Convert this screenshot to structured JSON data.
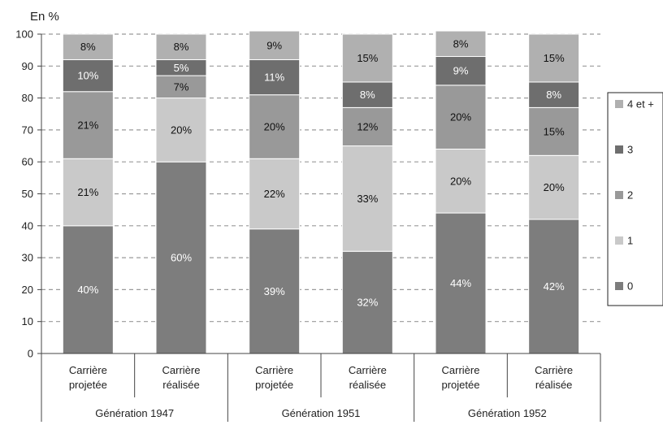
{
  "chart_data": {
    "type": "bar",
    "stacked": true,
    "y_unit_label": "En %",
    "ylim": [
      0,
      100
    ],
    "yticks": [
      0,
      10,
      20,
      30,
      40,
      50,
      60,
      70,
      80,
      90,
      100
    ],
    "grid": true,
    "legend_position": "right",
    "categories": [
      {
        "label": [
          "Carrière",
          "projetée"
        ],
        "group": "Génération 1947"
      },
      {
        "label": [
          "Carrière",
          "réalisée"
        ],
        "group": "Génération 1947"
      },
      {
        "label": [
          "Carrière",
          "projetée"
        ],
        "group": "Génération 1951"
      },
      {
        "label": [
          "Carrière",
          "réalisée"
        ],
        "group": "Génération 1951"
      },
      {
        "label": [
          "Carrière",
          "projetée"
        ],
        "group": "Génération 1952"
      },
      {
        "label": [
          "Carrière",
          "réalisée"
        ],
        "group": "Génération 1952"
      }
    ],
    "groups": [
      "Génération 1947",
      "Génération 1951",
      "Génération 1952"
    ],
    "series": [
      {
        "name": "0",
        "color": "#7d7d7d",
        "label_color": "#ffffff",
        "values": [
          40,
          60,
          39,
          32,
          44,
          42
        ],
        "labels": [
          "40%",
          "60%",
          "39%",
          "32%",
          "44%",
          "42%"
        ]
      },
      {
        "name": "1",
        "color": "#c9c9c9",
        "label_color": "#111111",
        "values": [
          21,
          20,
          22,
          33,
          20,
          20
        ],
        "labels": [
          "21%",
          "20%",
          "22%",
          "33%",
          "20%",
          "20%"
        ]
      },
      {
        "name": "2",
        "color": "#999999",
        "label_color": "#111111",
        "values": [
          21,
          7,
          20,
          12,
          20,
          15
        ],
        "labels": [
          "21%",
          "7%",
          "20%",
          "12%",
          "20%",
          "15%"
        ]
      },
      {
        "name": "3",
        "color": "#6e6e6e",
        "label_color": "#ffffff",
        "values": [
          10,
          5,
          11,
          8,
          9,
          8
        ],
        "labels": [
          "10%",
          "5%",
          "11%",
          "8%",
          "9%",
          "8%"
        ]
      },
      {
        "name": "4 et +",
        "color": "#b0b0b0",
        "label_color": "#111111",
        "values": [
          8,
          8,
          9,
          15,
          8,
          15
        ],
        "labels": [
          "8%",
          "8%",
          "9%",
          "15%",
          "8%",
          "15%"
        ]
      }
    ],
    "legend_order": [
      "4 et +",
      "3",
      "2",
      "1",
      "0"
    ]
  }
}
